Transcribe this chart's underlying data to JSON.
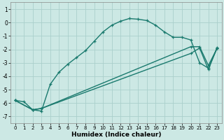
{
  "xlabel": "Humidex (Indice chaleur)",
  "bg_color": "#cce8e4",
  "grid_color": "#aacfcb",
  "line_color": "#1a7a6e",
  "xlim": [
    -0.5,
    23.5
  ],
  "ylim": [
    -7.5,
    1.5
  ],
  "xticks": [
    0,
    1,
    2,
    3,
    4,
    5,
    6,
    7,
    8,
    9,
    10,
    11,
    12,
    13,
    14,
    15,
    16,
    17,
    18,
    19,
    20,
    21,
    22,
    23
  ],
  "yticks": [
    -7,
    -6,
    -5,
    -4,
    -3,
    -2,
    -1,
    0,
    1
  ],
  "line1_x": [
    0,
    1,
    2,
    3,
    4,
    5,
    6,
    7,
    8,
    9,
    10,
    11,
    12,
    13,
    14,
    15,
    16,
    17,
    18,
    19,
    20,
    21,
    22,
    23
  ],
  "line1_y": [
    -5.8,
    -5.9,
    -6.5,
    -6.6,
    -4.6,
    -3.7,
    -3.1,
    -2.6,
    -2.1,
    -1.4,
    -0.7,
    -0.2,
    0.1,
    0.3,
    0.25,
    0.15,
    -0.2,
    -0.7,
    -1.1,
    -1.1,
    -1.3,
    -3.0,
    -3.4,
    -1.9
  ],
  "line2_x": [
    0,
    2,
    3,
    20,
    21,
    22,
    23
  ],
  "line2_y": [
    -5.8,
    -6.5,
    -6.4,
    -1.8,
    -1.8,
    -3.2,
    -1.9
  ],
  "line3_x": [
    0,
    2,
    3,
    20,
    21,
    22,
    23
  ],
  "line3_y": [
    -5.8,
    -6.5,
    -6.4,
    -2.3,
    -1.9,
    -3.5,
    -1.85
  ]
}
